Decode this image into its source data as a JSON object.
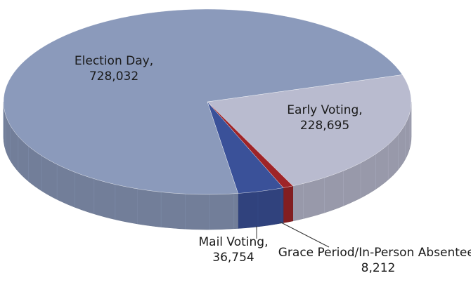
{
  "chart_data": {
    "type": "pie",
    "categories": [
      "Election Day,",
      "Early Voting,",
      "Grace Period/In-Person Absentee,",
      "Mail Voting,"
    ],
    "values": [
      728032,
      228695,
      8212,
      36754
    ],
    "value_labels": [
      "728,032",
      "228,695",
      "8,212",
      "36,754"
    ],
    "colors": [
      "#8b9abb",
      "#b9bbcf",
      "#9e2428",
      "#3a5199"
    ]
  }
}
